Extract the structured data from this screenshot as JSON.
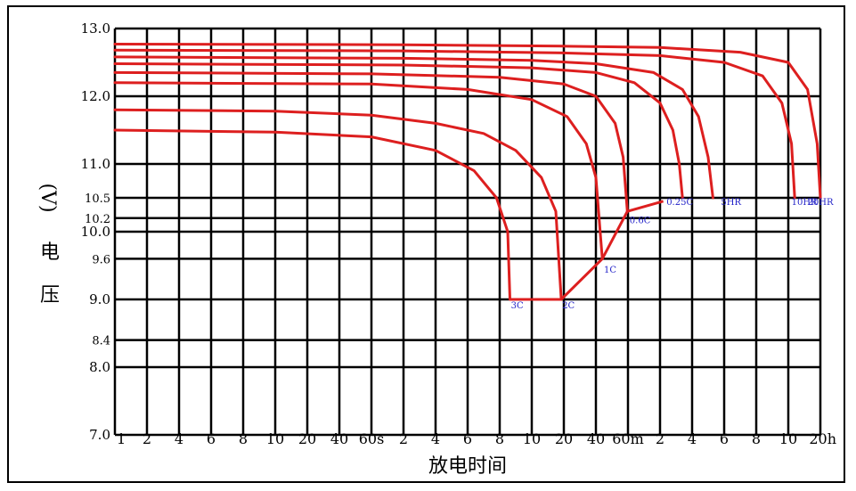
{
  "chart_data": {
    "type": "line",
    "xlabel": "放电时间",
    "ylabel_parts": [
      "(V)",
      "电",
      "压"
    ],
    "y_ticks": [
      {
        "value": 13.0,
        "label": "13.0"
      },
      {
        "value": 12.0,
        "label": "12.0"
      },
      {
        "value": 11.0,
        "label": "11.0"
      },
      {
        "value": 10.5,
        "label": "10.5"
      },
      {
        "value": 10.2,
        "label": "10.2"
      },
      {
        "value": 10.0,
        "label": "10.0"
      },
      {
        "value": 9.6,
        "label": "9.6"
      },
      {
        "value": 9.0,
        "label": "9.0"
      },
      {
        "value": 8.4,
        "label": "8.4"
      },
      {
        "value": 8.0,
        "label": "8.0"
      },
      {
        "value": 7.0,
        "label": "7.0"
      }
    ],
    "x_ticks": [
      {
        "pos": 0,
        "label": "1"
      },
      {
        "pos": 1,
        "label": "2"
      },
      {
        "pos": 2,
        "label": "4"
      },
      {
        "pos": 3,
        "label": "6"
      },
      {
        "pos": 4,
        "label": "8"
      },
      {
        "pos": 5,
        "label": "10"
      },
      {
        "pos": 6,
        "label": "20"
      },
      {
        "pos": 7,
        "label": "40"
      },
      {
        "pos": 8,
        "label": "60s"
      },
      {
        "pos": 9,
        "label": "2"
      },
      {
        "pos": 10,
        "label": "4"
      },
      {
        "pos": 11,
        "label": "6"
      },
      {
        "pos": 12,
        "label": "8"
      },
      {
        "pos": 13,
        "label": "10"
      },
      {
        "pos": 14,
        "label": "20"
      },
      {
        "pos": 15,
        "label": "40"
      },
      {
        "pos": 16,
        "label": "60m"
      },
      {
        "pos": 17,
        "label": "2"
      },
      {
        "pos": 18,
        "label": "4"
      },
      {
        "pos": 19,
        "label": "6"
      },
      {
        "pos": 20,
        "label": "8"
      },
      {
        "pos": 21,
        "label": "10"
      },
      {
        "pos": 22,
        "label": "20h"
      }
    ],
    "xlim": [
      0,
      22
    ],
    "ylim": [
      7.0,
      13.0
    ],
    "grid": true,
    "colors": {
      "curve": "#dd1f1f",
      "label": "#2323c8",
      "grid": "#000000"
    },
    "series": [
      {
        "name": "3C",
        "end_label": "3C",
        "points": [
          [
            0,
            11.5
          ],
          [
            5,
            11.47
          ],
          [
            8,
            11.4
          ],
          [
            10,
            11.2
          ],
          [
            11.2,
            10.9
          ],
          [
            11.9,
            10.5
          ],
          [
            12.25,
            10.0
          ],
          [
            12.32,
            9.0
          ]
        ]
      },
      {
        "name": "2C",
        "end_label": "2C",
        "points": [
          [
            0,
            11.8
          ],
          [
            5,
            11.78
          ],
          [
            8,
            11.72
          ],
          [
            10,
            11.6
          ],
          [
            11.5,
            11.45
          ],
          [
            12.5,
            11.2
          ],
          [
            13.3,
            10.8
          ],
          [
            13.75,
            10.3
          ],
          [
            13.92,
            9.0
          ]
        ]
      },
      {
        "name": "1C",
        "end_label": "1C",
        "points": [
          [
            0,
            12.2
          ],
          [
            8,
            12.18
          ],
          [
            11,
            12.1
          ],
          [
            13,
            11.95
          ],
          [
            14.1,
            11.7
          ],
          [
            14.7,
            11.3
          ],
          [
            15.0,
            10.8
          ],
          [
            15.2,
            9.6
          ]
        ]
      },
      {
        "name": "0.6C",
        "end_label": "0.6C",
        "points": [
          [
            0,
            12.35
          ],
          [
            8,
            12.33
          ],
          [
            12,
            12.28
          ],
          [
            14,
            12.18
          ],
          [
            15,
            12.0
          ],
          [
            15.6,
            11.6
          ],
          [
            15.85,
            11.1
          ],
          [
            15.98,
            10.3
          ]
        ]
      },
      {
        "name": "0.25C",
        "end_label": "0.25C",
        "points": [
          [
            0,
            12.48
          ],
          [
            9,
            12.46
          ],
          [
            13,
            12.42
          ],
          [
            15,
            12.35
          ],
          [
            16.2,
            12.2
          ],
          [
            17.0,
            11.9
          ],
          [
            17.4,
            11.5
          ],
          [
            17.6,
            11.0
          ],
          [
            17.7,
            10.5
          ]
        ]
      },
      {
        "name": "5HR",
        "end_label": "5HR",
        "points": [
          [
            0,
            12.58
          ],
          [
            9,
            12.56
          ],
          [
            13,
            12.53
          ],
          [
            15,
            12.48
          ],
          [
            16.8,
            12.35
          ],
          [
            17.7,
            12.1
          ],
          [
            18.2,
            11.7
          ],
          [
            18.5,
            11.1
          ],
          [
            18.65,
            10.5
          ]
        ]
      },
      {
        "name": "10HR",
        "end_label": "10HR",
        "points": [
          [
            0,
            12.68
          ],
          [
            9,
            12.67
          ],
          [
            14,
            12.64
          ],
          [
            17,
            12.6
          ],
          [
            19,
            12.5
          ],
          [
            20.2,
            12.3
          ],
          [
            20.8,
            11.9
          ],
          [
            21.1,
            11.3
          ],
          [
            21.2,
            10.5
          ]
        ]
      },
      {
        "name": "20HR",
        "end_label": "20HR",
        "points": [
          [
            0,
            12.77
          ],
          [
            9,
            12.76
          ],
          [
            14,
            12.74
          ],
          [
            17,
            12.72
          ],
          [
            19.5,
            12.65
          ],
          [
            21,
            12.5
          ],
          [
            21.6,
            12.1
          ],
          [
            21.9,
            11.3
          ],
          [
            22.0,
            10.5
          ]
        ]
      }
    ],
    "end_voltage_line": [
      [
        12.32,
        9.0
      ],
      [
        13.92,
        9.0
      ],
      [
        15.2,
        9.6
      ],
      [
        15.98,
        10.3
      ],
      [
        17.1,
        10.45
      ]
    ],
    "label_positions": [
      {
        "text": "3C",
        "at": [
          12.35,
          8.92
        ]
      },
      {
        "text": "2C",
        "at": [
          13.95,
          8.92
        ]
      },
      {
        "text": "1C",
        "at": [
          15.25,
          9.45
        ]
      },
      {
        "text": "0.6C",
        "at": [
          16.05,
          10.18
        ]
      },
      {
        "text": "0.25C",
        "at": [
          17.2,
          10.45
        ]
      },
      {
        "text": "5HR",
        "at": [
          18.9,
          10.45
        ]
      },
      {
        "text": "10HR",
        "at": [
          21.1,
          10.45
        ]
      },
      {
        "text": "20HR",
        "at": [
          22.0,
          10.45
        ]
      }
    ]
  }
}
